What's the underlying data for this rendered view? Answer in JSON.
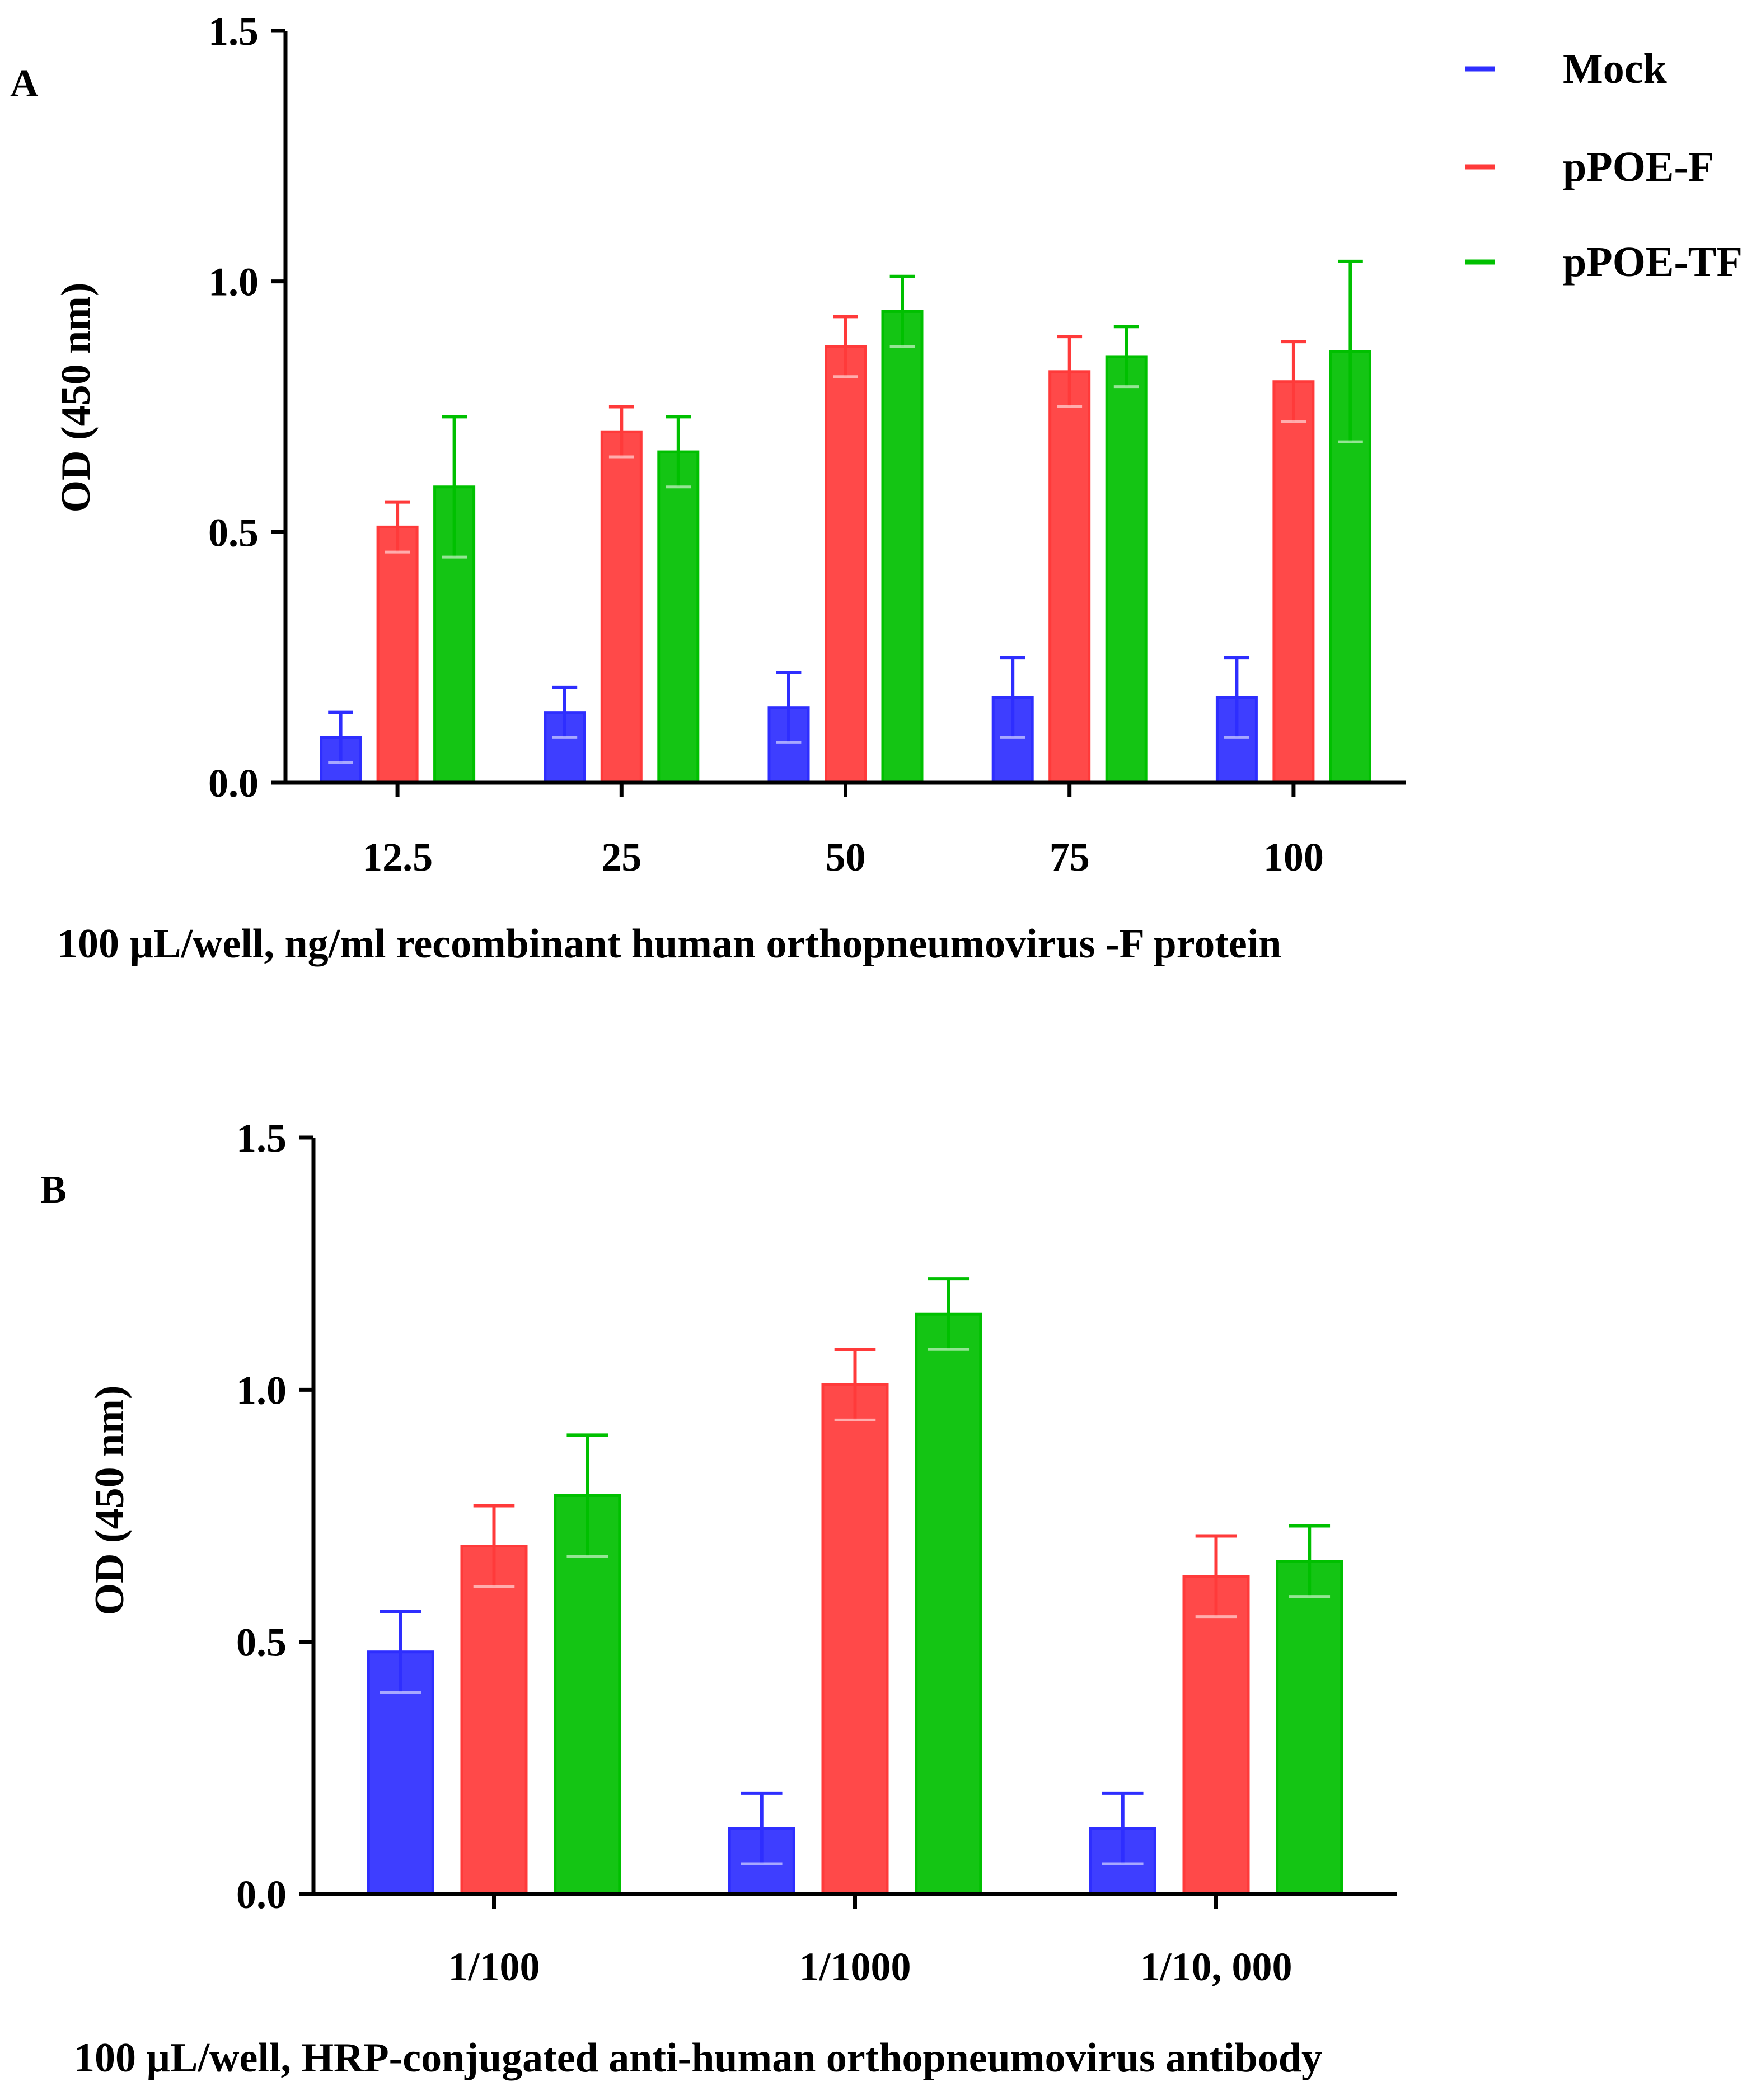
{
  "figure": {
    "legend": [
      {
        "name": "Mock",
        "color": "#2e2eff"
      },
      {
        "name": "pPOE-F",
        "color": "#ff3a3a"
      },
      {
        "name": "pPOE-TF",
        "color": "#00c000"
      }
    ]
  },
  "chart_data": [
    {
      "panel": "A",
      "type": "bar",
      "title": "",
      "categories": [
        "12.5",
        "25",
        "50",
        "75",
        "100"
      ],
      "series": [
        {
          "name": "Mock",
          "color": "#2e2eff",
          "values": [
            0.09,
            0.14,
            0.15,
            0.17,
            0.17
          ],
          "errors": [
            0.05,
            0.05,
            0.07,
            0.08,
            0.08
          ]
        },
        {
          "name": "pPOE-F",
          "color": "#ff3a3a",
          "values": [
            0.51,
            0.7,
            0.87,
            0.82,
            0.8
          ],
          "errors": [
            0.05,
            0.05,
            0.06,
            0.07,
            0.08
          ]
        },
        {
          "name": "pPOE-TF",
          "color": "#00c000",
          "values": [
            0.59,
            0.66,
            0.94,
            0.85,
            0.86
          ],
          "errors": [
            0.14,
            0.07,
            0.07,
            0.06,
            0.18
          ]
        }
      ],
      "xlabel": "100 µL/well, ng/ml recombinant human orthopneumovirus -F protein",
      "ylabel": "OD (450 nm)",
      "ylim": [
        0,
        1.5
      ],
      "yticks": [
        "0.0",
        "0.5",
        "1.0",
        "1.5"
      ],
      "legend": "top-right",
      "grid": false
    },
    {
      "panel": "B",
      "type": "bar",
      "title": "",
      "categories": [
        "1/100",
        "1/1000",
        "1/10, 000"
      ],
      "series": [
        {
          "name": "Mock",
          "color": "#2e2eff",
          "values": [
            0.48,
            0.13,
            0.13
          ],
          "errors": [
            0.08,
            0.07,
            0.07
          ]
        },
        {
          "name": "pPOE-F",
          "color": "#ff3a3a",
          "values": [
            0.69,
            1.01,
            0.63
          ],
          "errors": [
            0.08,
            0.07,
            0.08
          ]
        },
        {
          "name": "pPOE-TF",
          "color": "#00c000",
          "values": [
            0.79,
            1.15,
            0.66
          ],
          "errors": [
            0.12,
            0.07,
            0.07
          ]
        }
      ],
      "xlabel": "100 µL/well, HRP-conjugated anti-human orthopneumovirus antibody",
      "ylabel": "OD (450 nm)",
      "ylim": [
        0,
        1.5
      ],
      "yticks": [
        "0.0",
        "0.5",
        "1.0",
        "1.5"
      ],
      "legend": "none",
      "grid": false
    }
  ]
}
